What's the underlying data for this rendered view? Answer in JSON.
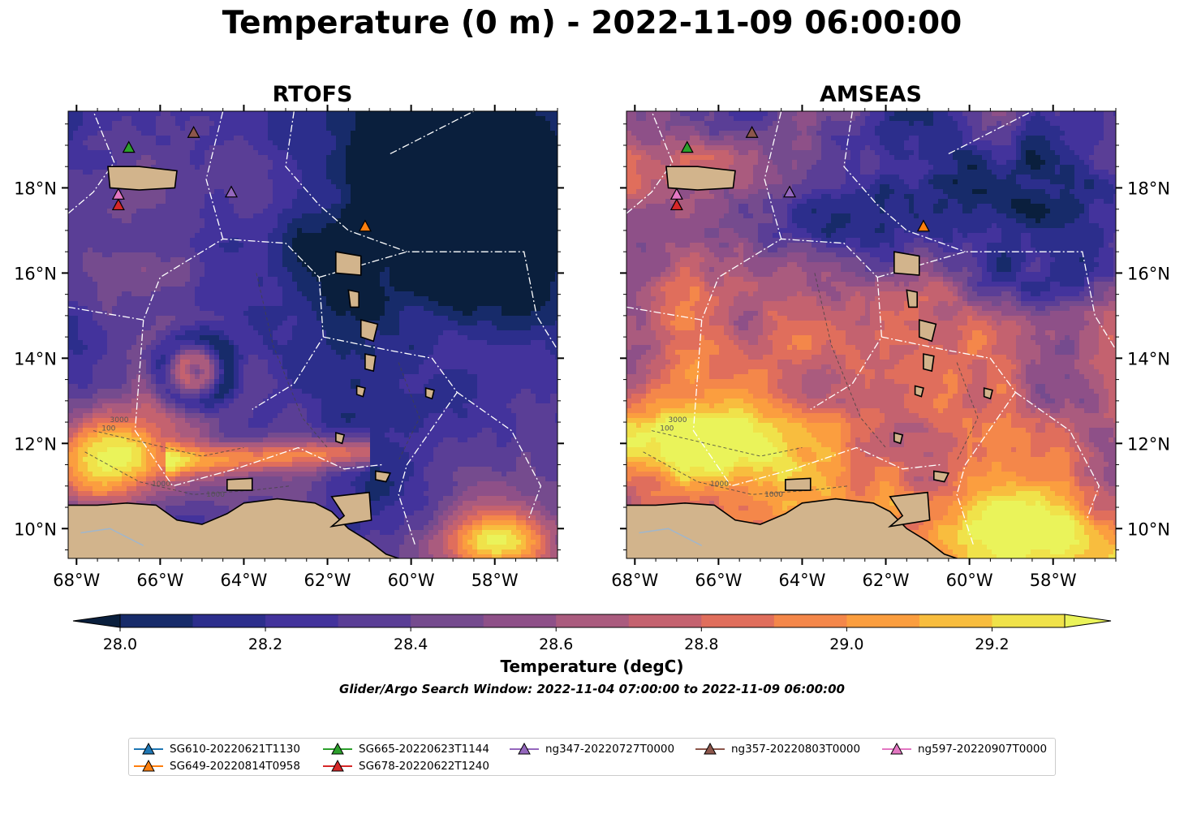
{
  "title": "Temperature (0 m) - 2022-11-09 06:00:00",
  "panels": [
    {
      "title": "RTOFS"
    },
    {
      "title": "AMSEAS"
    }
  ],
  "lon_ticks": [
    "68°W",
    "66°W",
    "64°W",
    "62°W",
    "60°W",
    "58°W"
  ],
  "lat_ticks": [
    "18°N",
    "16°N",
    "14°N",
    "12°N",
    "10°N"
  ],
  "contour_labels": [
    "1000",
    "100",
    "3000"
  ],
  "colorbar": {
    "label": "Temperature (degC)",
    "ticks": [
      "28.0",
      "28.2",
      "28.4",
      "28.6",
      "28.8",
      "29.0",
      "29.2"
    ],
    "colors": [
      "#0a1f3d",
      "#172b6a",
      "#2c2e8c",
      "#43339c",
      "#5a3e96",
      "#754b8e",
      "#8e5088",
      "#aa5b7e",
      "#c4626f",
      "#e06e5c",
      "#f4874a",
      "#fb9e3f",
      "#f8bd3e",
      "#f0e24a",
      "#eaf35a"
    ]
  },
  "subtitle": "Glider/Argo Search Window: 2022-11-04 07:00:00 to 2022-11-09 06:00:00",
  "legend": [
    {
      "label": "SG610-20220621T1130",
      "color": "#1f77b4"
    },
    {
      "label": "SG649-20220814T0958",
      "color": "#ff7f0e"
    },
    {
      "label": "SG665-20220623T1144",
      "color": "#2ca02c"
    },
    {
      "label": "SG678-20220622T1240",
      "color": "#d62728"
    },
    {
      "label": "ng347-20220727T0000",
      "color": "#9467bd"
    },
    {
      "label": "ng357-20220803T0000",
      "color": "#8c564b"
    },
    {
      "label": "ng597-20220907T0000",
      "color": "#e377c2"
    }
  ],
  "chart_data": {
    "type": "heatmap",
    "variable": "Temperature (0 m)",
    "units": "degC",
    "colorbar_range": [
      28.0,
      29.3
    ],
    "colorbar_step": 0.1,
    "extend": "both",
    "lon_range": [
      -68.2,
      -56.5
    ],
    "lat_range": [
      9.3,
      19.8
    ],
    "panels": [
      "RTOFS",
      "AMSEAS"
    ],
    "markers": [
      {
        "name": "SG610-20220621T1130",
        "lon": -61.1,
        "lat": 17.1,
        "shown": false
      },
      {
        "name": "SG649-20220814T0958",
        "lon": -61.1,
        "lat": 17.1
      },
      {
        "name": "SG665-20220623T1144",
        "lon": -66.75,
        "lat": 18.95
      },
      {
        "name": "SG678-20220622T1240",
        "lon": -67.0,
        "lat": 17.6
      },
      {
        "name": "ng347-20220727T0000",
        "lon": -64.3,
        "lat": 17.9
      },
      {
        "name": "ng357-20220803T0000",
        "lon": -65.2,
        "lat": 19.3
      },
      {
        "name": "ng597-20220907T0000",
        "lon": -67.0,
        "lat": 17.85
      }
    ]
  }
}
